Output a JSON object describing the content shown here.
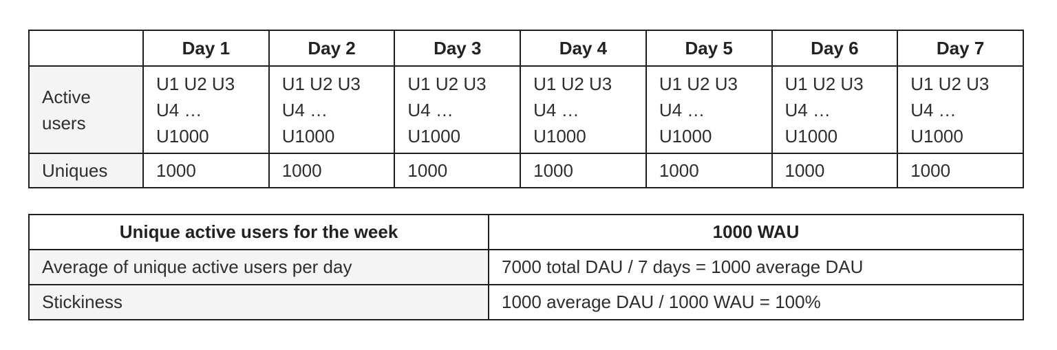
{
  "table1": {
    "columns": [
      "Day 1",
      "Day 2",
      "Day 3",
      "Day 4",
      "Day 5",
      "Day 6",
      "Day 7"
    ],
    "rows": [
      {
        "label": "Active users",
        "cells": [
          [
            "U1 U2 U3",
            "U4 …",
            "U1000"
          ],
          [
            "U1 U2 U3",
            "U4 …",
            "U1000"
          ],
          [
            "U1 U2 U3",
            "U4 …",
            "U1000"
          ],
          [
            "U1 U2 U3",
            "U4 …",
            "U1000"
          ],
          [
            "U1 U2 U3",
            "U4 …",
            "U1000"
          ],
          [
            "U1 U2 U3",
            "U4 …",
            "U1000"
          ],
          [
            "U1 U2 U3",
            "U4 …",
            "U1000"
          ]
        ]
      },
      {
        "label": "Uniques",
        "cells": [
          "1000",
          "1000",
          "1000",
          "1000",
          "1000",
          "1000",
          "1000"
        ]
      }
    ]
  },
  "table2": {
    "header": [
      "Unique active users for the week",
      "1000 WAU"
    ],
    "rows": [
      [
        "Average of unique active users per day",
        "7000 total DAU / 7 days = 1000 average DAU"
      ],
      [
        "Stickiness",
        "1000 average DAU / 1000 WAU = 100%"
      ]
    ]
  }
}
